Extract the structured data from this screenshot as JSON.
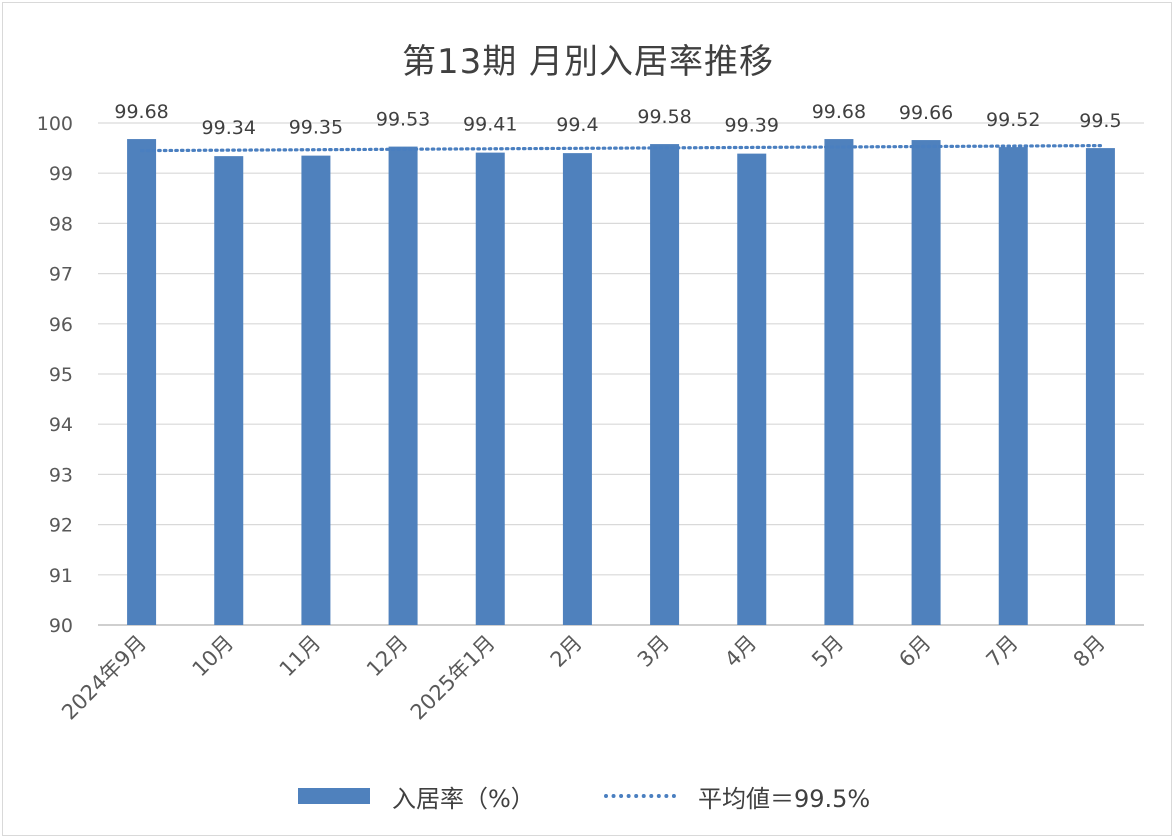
{
  "chart_data": {
    "type": "bar",
    "title": "第13期 月別入居率推移",
    "categories": [
      "2024年9月",
      "10月",
      "11月",
      "12月",
      "2025年1月",
      "2月",
      "3月",
      "4月",
      "5月",
      "6月",
      "7月",
      "8月"
    ],
    "series": [
      {
        "name": "入居率（%）",
        "values": [
          99.68,
          99.34,
          99.35,
          99.53,
          99.41,
          99.4,
          99.58,
          99.39,
          99.68,
          99.66,
          99.52,
          99.5
        ],
        "data_labels": [
          "99.68",
          "99.34",
          "99.35",
          "99.53",
          "99.41",
          "99.4",
          "99.58",
          "99.39",
          "99.68",
          "99.66",
          "99.52",
          "99.5"
        ],
        "color": "#4f81bd"
      },
      {
        "name": "平均値＝99.5%",
        "type": "line",
        "style": "dotted",
        "start": 99.45,
        "end": 99.55,
        "color": "#4a7fc0"
      }
    ],
    "ylim": [
      90,
      100
    ],
    "yticks": [
      "90",
      "91",
      "92",
      "93",
      "94",
      "95",
      "96",
      "97",
      "98",
      "99",
      "100"
    ],
    "grid": true,
    "legend": "bottom"
  }
}
